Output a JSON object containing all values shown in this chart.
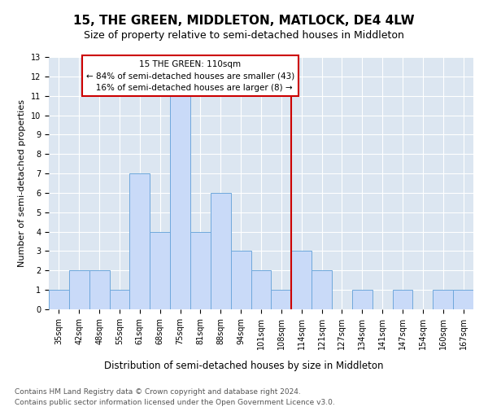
{
  "title": "15, THE GREEN, MIDDLETON, MATLOCK, DE4 4LW",
  "subtitle": "Size of property relative to semi-detached houses in Middleton",
  "xlabel": "Distribution of semi-detached houses by size in Middleton",
  "ylabel": "Number of semi-detached properties",
  "categories": [
    "35sqm",
    "42sqm",
    "48sqm",
    "55sqm",
    "61sqm",
    "68sqm",
    "75sqm",
    "81sqm",
    "88sqm",
    "94sqm",
    "101sqm",
    "108sqm",
    "114sqm",
    "121sqm",
    "127sqm",
    "134sqm",
    "141sqm",
    "147sqm",
    "154sqm",
    "160sqm",
    "167sqm"
  ],
  "values": [
    1,
    2,
    2,
    1,
    7,
    4,
    11,
    4,
    6,
    3,
    2,
    1,
    3,
    2,
    0,
    1,
    0,
    1,
    0,
    1,
    1
  ],
  "bar_color": "#c9daf8",
  "bar_edge_color": "#6fa8dc",
  "property_label": "15 THE GREEN: 110sqm",
  "pct_smaller": 84,
  "count_smaller": 43,
  "pct_larger": 16,
  "count_larger": 8,
  "vline_color": "#cc0000",
  "box_edge_color": "#cc0000",
  "box_face_color": "white",
  "background_color": "#dce6f1",
  "ylim": [
    0,
    13
  ],
  "yticks": [
    0,
    1,
    2,
    3,
    4,
    5,
    6,
    7,
    8,
    9,
    10,
    11,
    12,
    13
  ],
  "footer1": "Contains HM Land Registry data © Crown copyright and database right 2024.",
  "footer2": "Contains public sector information licensed under the Open Government Licence v3.0.",
  "title_fontsize": 11,
  "subtitle_fontsize": 9,
  "xlabel_fontsize": 8.5,
  "ylabel_fontsize": 8,
  "tick_fontsize": 7,
  "annotation_fontsize": 7.5,
  "footer_fontsize": 6.5,
  "vline_x_index": 11.5
}
